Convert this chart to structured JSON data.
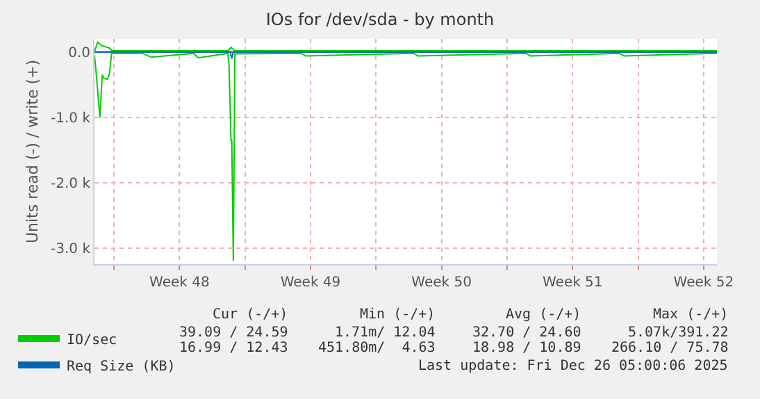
{
  "chart_data": {
    "type": "line",
    "title": "IOs for /dev/sda - by month",
    "ylabel": "Units read (-) / write (+)",
    "xlim": [
      "2025-11-22T23:00",
      "2025-12-26T05:00"
    ],
    "xticks": [
      {
        "value": "2025-11-24",
        "label": null
      },
      {
        "value": "2025-11-27T12:00",
        "label": "Week 48"
      },
      {
        "value": "2025-12-01",
        "label": null
      },
      {
        "value": "2025-12-04T12:00",
        "label": "Week 49"
      },
      {
        "value": "2025-12-08",
        "label": null
      },
      {
        "value": "2025-12-11T12:00",
        "label": "Week 50"
      },
      {
        "value": "2025-12-15",
        "label": null
      },
      {
        "value": "2025-12-18T12:00",
        "label": "Week 51"
      },
      {
        "value": "2025-12-22",
        "label": null
      },
      {
        "value": "2025-12-25T12:00",
        "label": "Week 52"
      }
    ],
    "ylim": [
      -3250,
      200
    ],
    "yticks": [
      {
        "value": 0,
        "label": "0.0"
      },
      {
        "value": -1000,
        "label": "-1.0 k"
      },
      {
        "value": -2000,
        "label": "-2.0 k"
      },
      {
        "value": -3000,
        "label": "-3.0 k"
      }
    ],
    "grid": true,
    "legend": "bottom left",
    "series": [
      {
        "name": "IO/sec",
        "color": "#00cc00",
        "x": [
          "2025-11-22T23:00",
          "2025-11-23T03:00",
          "2025-11-23T08:00",
          "2025-11-23T18:00",
          "2025-11-23T22:00",
          "2025-11-25",
          "2025-11-28",
          "2025-11-30T02:00",
          "2025-11-30T06:00",
          "2025-11-30T11:00",
          "2025-12-03",
          "2025-12-08",
          "2025-12-13",
          "2025-12-18",
          "2025-12-23",
          "2025-12-26T05:00"
        ],
        "values": [
          0,
          150,
          100,
          60,
          20,
          20,
          20,
          20,
          70,
          20,
          20,
          20,
          20,
          20,
          20,
          20
        ]
      },
      {
        "color": "#00cc00",
        "x": [
          "2025-11-22T23:00",
          "2025-11-23T01:00",
          "2025-11-23T06:00",
          "2025-11-23T09:00",
          "2025-11-23T11:00",
          "2025-11-23T15:00",
          "2025-11-23T18:00",
          "2025-11-23T21:00",
          "2025-11-25T12:00",
          "2025-11-26",
          "2025-11-28T06:00",
          "2025-11-28T12:00",
          "2025-11-30T02:00",
          "2025-11-30T03:30",
          "2025-11-30T06:00",
          "2025-11-30T07:00",
          "2025-11-30T09:00",
          "2025-11-30T11:00",
          "2025-12-04",
          "2025-12-04T06:00",
          "2025-12-10",
          "2025-12-10T06:00",
          "2025-12-16",
          "2025-12-16T06:00",
          "2025-12-21",
          "2025-12-21T06:00",
          "2025-12-26T05:00"
        ],
        "values": [
          -50,
          -300,
          -1000,
          -350,
          -400,
          -420,
          -350,
          -20,
          -20,
          -80,
          -20,
          -90,
          -20,
          -200,
          -1350,
          -1350,
          -3200,
          -30,
          -20,
          -60,
          -20,
          -60,
          -20,
          -60,
          -20,
          -60,
          -20
        ]
      },
      {
        "name": "Req Size (KB)",
        "color": "#0066b3",
        "x": [
          "2025-11-22T23:00",
          "2025-11-30T06:00",
          "2025-12-10",
          "2025-12-26T05:00"
        ],
        "values": [
          0,
          0,
          0,
          0
        ]
      },
      {
        "color": "#0066b3",
        "x": [
          "2025-11-22T23:00",
          "2025-11-30T05:00",
          "2025-11-30T07:00",
          "2025-11-30T09:00",
          "2025-12-10",
          "2025-12-26T05:00"
        ],
        "values": [
          0,
          0,
          -100,
          0,
          0,
          0
        ]
      }
    ],
    "annotations": [
      "Cur (-/+)",
      "Min (-/+)",
      "Avg (-/+)",
      "Max (-/+)",
      "39.09 / 24.59",
      "1.71m/ 12.04",
      "32.70 / 24.60",
      "5.07k/391.22",
      "16.99 / 12.43",
      "451.80m/  4.63",
      "18.98 / 10.89",
      "266.10 / 75.78",
      "Last update: Fri Dec 26 05:00:06 2025"
    ]
  }
}
